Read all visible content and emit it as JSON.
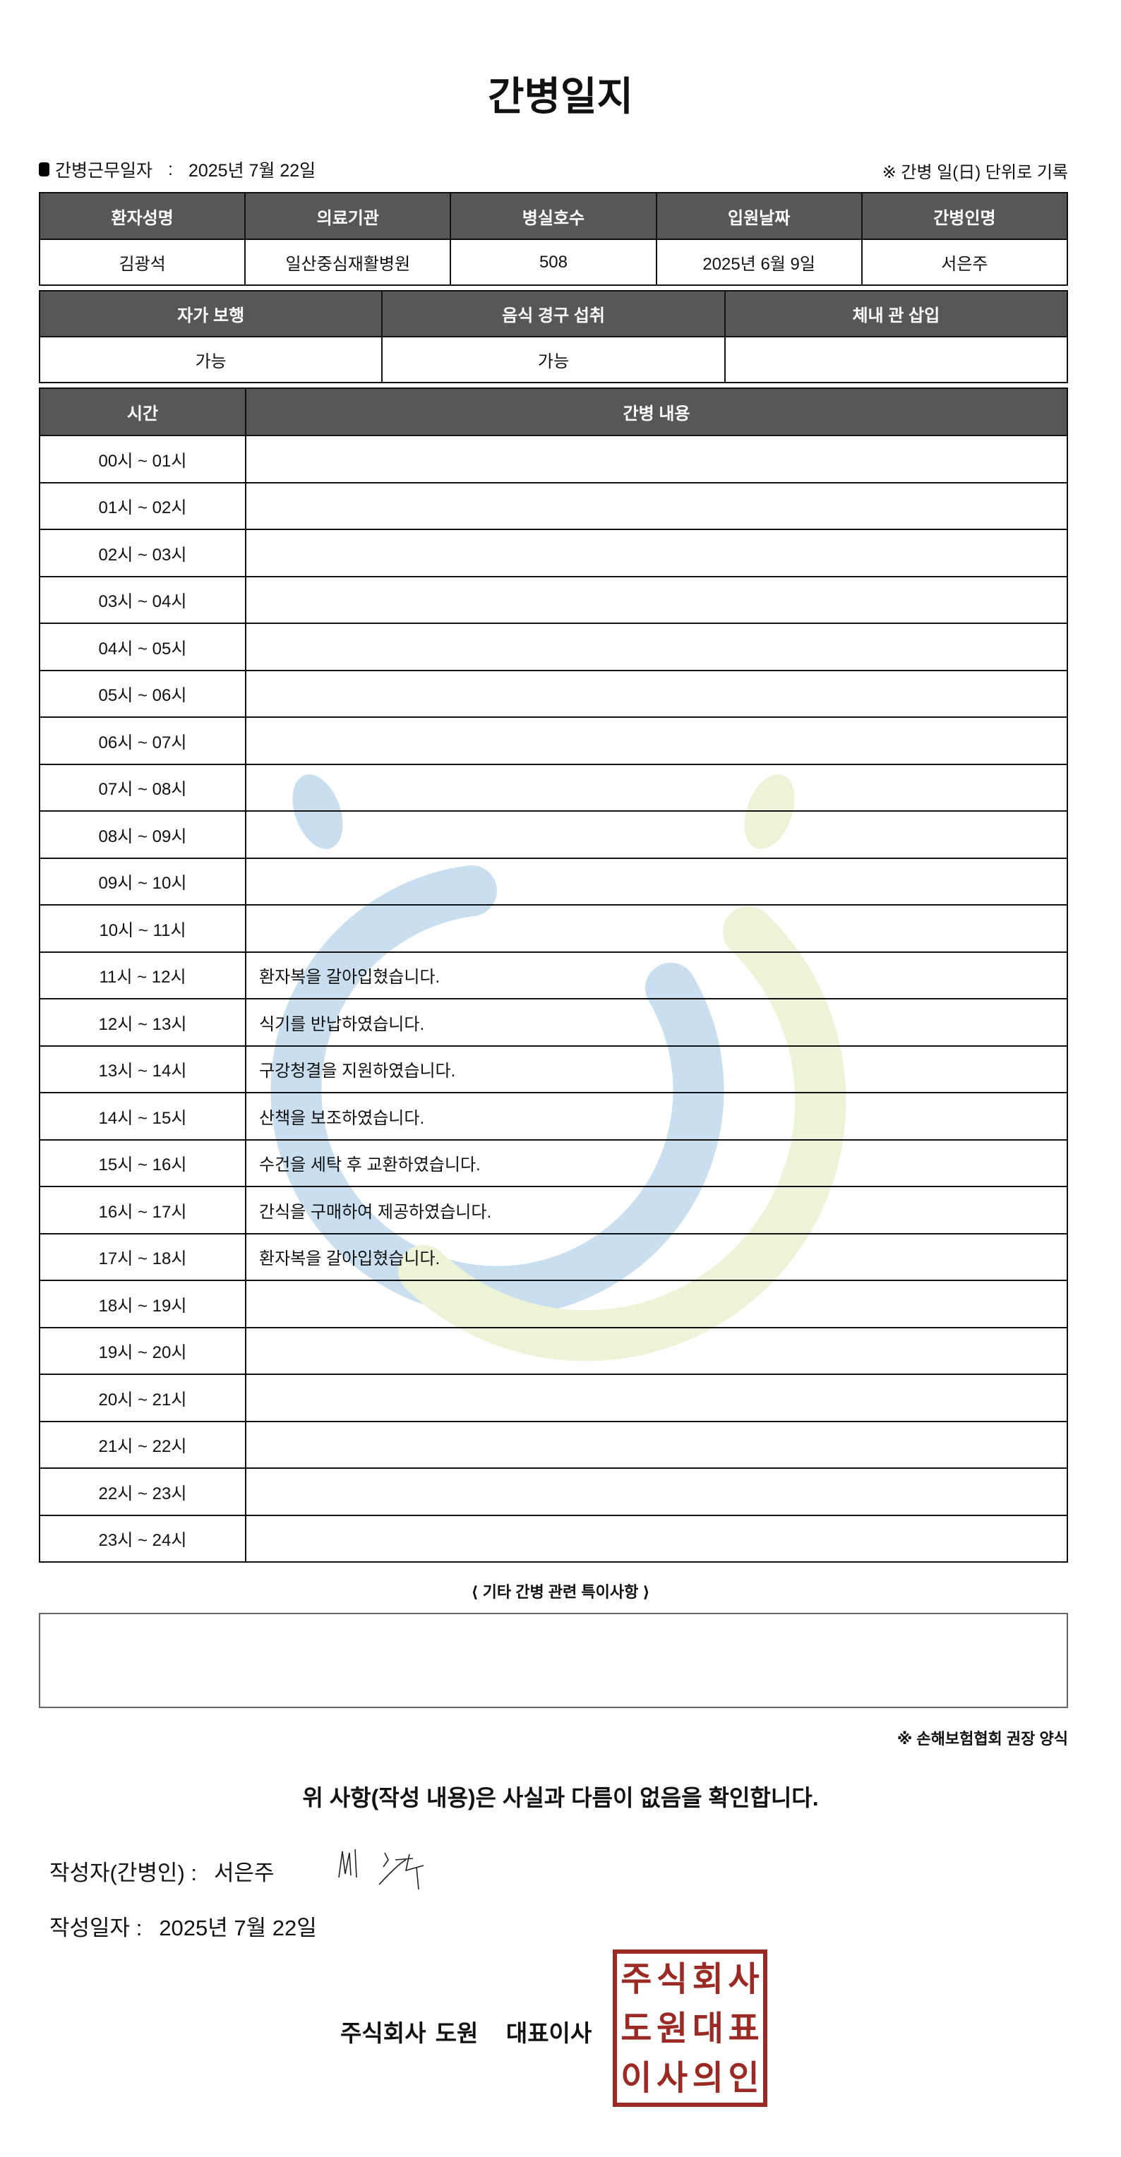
{
  "title": "간병일지",
  "work_date_label": "간병근무일자",
  "work_date_sep": ":",
  "work_date": "2025년 7월 22일",
  "record_note": "※ 간병 일(日) 단위로 기록",
  "patient_table": {
    "headers": [
      "환자성명",
      "의료기관",
      "병실호수",
      "입원날짜",
      "간병인명"
    ],
    "values": [
      "김광석",
      "일산중심재활병원",
      "508",
      "2025년 6월 9일",
      "서은주"
    ]
  },
  "status_table": {
    "headers": [
      "자가 보행",
      "음식 경구 섭취",
      "체내 관 삽입"
    ],
    "values": [
      "가능",
      "가능",
      ""
    ]
  },
  "log_table": {
    "headers": [
      "시간",
      "간병 내용"
    ],
    "rows": [
      {
        "time": "00시 ~ 01시",
        "content": ""
      },
      {
        "time": "01시 ~ 02시",
        "content": ""
      },
      {
        "time": "02시 ~ 03시",
        "content": ""
      },
      {
        "time": "03시 ~ 04시",
        "content": ""
      },
      {
        "time": "04시 ~ 05시",
        "content": ""
      },
      {
        "time": "05시 ~ 06시",
        "content": ""
      },
      {
        "time": "06시 ~ 07시",
        "content": ""
      },
      {
        "time": "07시 ~ 08시",
        "content": ""
      },
      {
        "time": "08시 ~ 09시",
        "content": ""
      },
      {
        "time": "09시 ~ 10시",
        "content": ""
      },
      {
        "time": "10시 ~ 11시",
        "content": ""
      },
      {
        "time": "11시 ~ 12시",
        "content": "환자복을 갈아입혔습니다."
      },
      {
        "time": "12시 ~ 13시",
        "content": "식기를 반납하였습니다."
      },
      {
        "time": "13시 ~ 14시",
        "content": "구강청결을 지원하였습니다."
      },
      {
        "time": "14시 ~ 15시",
        "content": "산책을 보조하였습니다."
      },
      {
        "time": "15시 ~ 16시",
        "content": "수건을 세탁 후 교환하였습니다."
      },
      {
        "time": "16시 ~ 17시",
        "content": "간식을 구매하여 제공하였습니다."
      },
      {
        "time": "17시 ~ 18시",
        "content": "환자복을 갈아입혔습니다."
      },
      {
        "time": "18시 ~ 19시",
        "content": ""
      },
      {
        "time": "19시 ~ 20시",
        "content": ""
      },
      {
        "time": "20시 ~ 21시",
        "content": ""
      },
      {
        "time": "21시 ~ 22시",
        "content": ""
      },
      {
        "time": "22시 ~ 23시",
        "content": ""
      },
      {
        "time": "23시 ~ 24시",
        "content": ""
      }
    ]
  },
  "notes_label": "⟨ 기타 간병 관련 특이사항 ⟩",
  "notes": "",
  "form_note": "※ 손해보험협회 권장 양식",
  "confirm_text": "위 사항(작성 내용)은 사실과 다름이 없음을 확인합니다.",
  "writer_label": "작성자(간병인) :",
  "writer_name": "서은주",
  "write_date_label": "작성일자 :",
  "write_date": "2025년 7월 22일",
  "company": "주식회사 도원   대표이사",
  "stamp_text": "주식회사도원대표이사의인",
  "colors": {
    "header_bg": "#575757",
    "stamp": "#9b2a25",
    "watermark_blue": "#c9dff0",
    "watermark_green": "#ecf3d6"
  }
}
